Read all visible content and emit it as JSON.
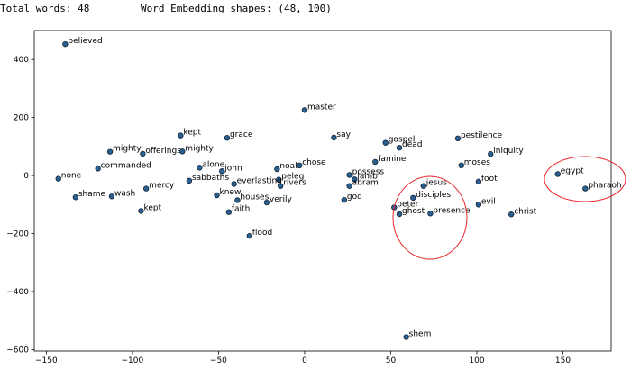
{
  "header": {
    "total_words": "Total words: 48",
    "embedding_shapes": "Word Embedding shapes: (48, 100)"
  },
  "chart_data": {
    "type": "scatter",
    "title": "",
    "xlabel": "",
    "ylabel": "",
    "xlim": [
      -157,
      178
    ],
    "ylim": [
      -605,
      500
    ],
    "xticks": [
      -150,
      -100,
      -50,
      0,
      50,
      100,
      150
    ],
    "yticks": [
      400,
      200,
      0,
      -200,
      -400,
      -600
    ],
    "grid": false,
    "point_color": "#2a5f8f",
    "annotation_color": "#e8262b",
    "points": [
      {
        "label": "believed",
        "x": -139,
        "y": 453
      },
      {
        "label": "master",
        "x": 0,
        "y": 226
      },
      {
        "label": "kept",
        "x": -72,
        "y": 138
      },
      {
        "label": "grace",
        "x": -45,
        "y": 130
      },
      {
        "label": "say",
        "x": 17,
        "y": 131
      },
      {
        "label": "gospel",
        "x": 47,
        "y": 113
      },
      {
        "label": "dead",
        "x": 55,
        "y": 96
      },
      {
        "label": "pestilence",
        "x": 89,
        "y": 128
      },
      {
        "label": "mighty",
        "x": -113,
        "y": 82
      },
      {
        "label": "offerings",
        "x": -94,
        "y": 75
      },
      {
        "label": "mighty",
        "x": -71,
        "y": 83
      },
      {
        "label": "iniquity",
        "x": 108,
        "y": 74
      },
      {
        "label": "famine",
        "x": 41,
        "y": 47
      },
      {
        "label": "moses",
        "x": 91,
        "y": 35
      },
      {
        "label": "commanded",
        "x": -120,
        "y": 24
      },
      {
        "label": "alone",
        "x": -61,
        "y": 27
      },
      {
        "label": "john",
        "x": -48,
        "y": 15
      },
      {
        "label": "noah",
        "x": -16,
        "y": 22
      },
      {
        "label": "chose",
        "x": -3,
        "y": 35
      },
      {
        "label": "egypt",
        "x": 147,
        "y": 5
      },
      {
        "label": "possess",
        "x": 26,
        "y": 2
      },
      {
        "label": "none",
        "x": -143,
        "y": -11
      },
      {
        "label": "sabbaths",
        "x": -67,
        "y": -18
      },
      {
        "label": "peleg",
        "x": -15,
        "y": -14
      },
      {
        "label": "lamb",
        "x": 29,
        "y": -13
      },
      {
        "label": "foot",
        "x": 101,
        "y": -21
      },
      {
        "label": "everlasting",
        "x": -41,
        "y": -29
      },
      {
        "label": "rivers",
        "x": -14,
        "y": -36
      },
      {
        "label": "abram",
        "x": 26,
        "y": -36
      },
      {
        "label": "jesus",
        "x": 69,
        "y": -36
      },
      {
        "label": "pharaoh",
        "x": 163,
        "y": -45
      },
      {
        "label": "mercy",
        "x": -92,
        "y": -45
      },
      {
        "label": "shame",
        "x": -133,
        "y": -75
      },
      {
        "label": "wash",
        "x": -112,
        "y": -72
      },
      {
        "label": "knew",
        "x": -51,
        "y": -68
      },
      {
        "label": "houses",
        "x": -39,
        "y": -85
      },
      {
        "label": "verily",
        "x": -22,
        "y": -93
      },
      {
        "label": "god",
        "x": 23,
        "y": -84
      },
      {
        "label": "disciples",
        "x": 63,
        "y": -77
      },
      {
        "label": "evil",
        "x": 101,
        "y": -100
      },
      {
        "label": "peter",
        "x": 52,
        "y": -110
      },
      {
        "label": "kept",
        "x": -95,
        "y": -122
      },
      {
        "label": "faith",
        "x": -44,
        "y": -126
      },
      {
        "label": "ghost",
        "x": 55,
        "y": -133
      },
      {
        "label": "presence",
        "x": 73,
        "y": -131
      },
      {
        "label": "christ",
        "x": 120,
        "y": -134
      },
      {
        "label": "flood",
        "x": -32,
        "y": -208
      },
      {
        "label": "shem",
        "x": 59,
        "y": -557
      }
    ]
  }
}
